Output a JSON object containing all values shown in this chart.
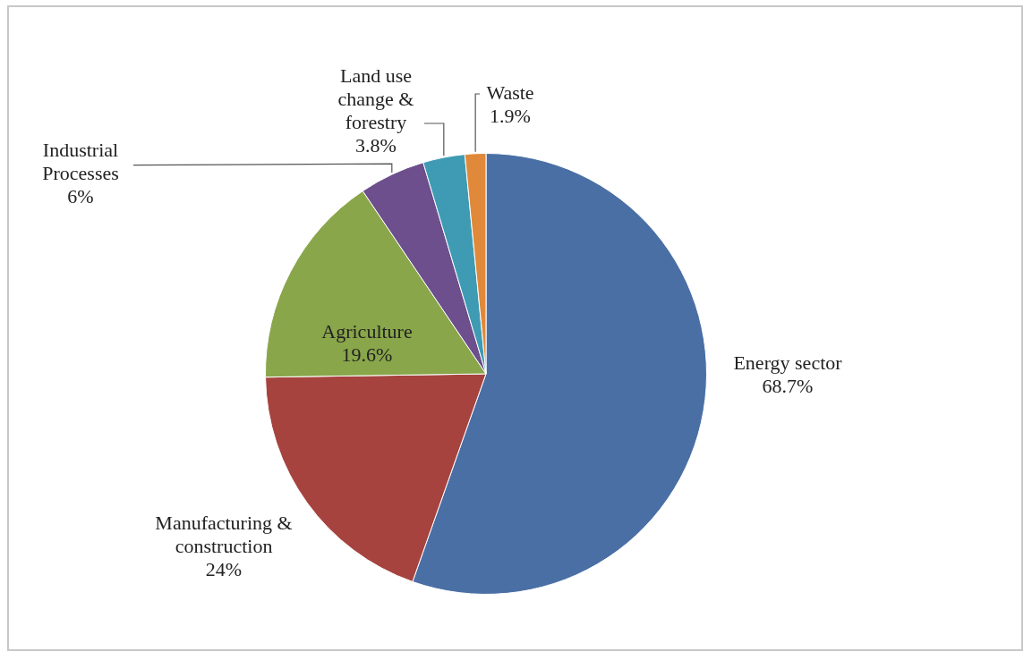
{
  "chart_data": {
    "type": "pie",
    "categories": [
      "Energy sector",
      "Manufacturing & construction",
      "Agriculture",
      "Industrial Processes",
      "Land use change & forestry",
      "Waste"
    ],
    "values": [
      68.7,
      24,
      19.6,
      6,
      3.8,
      1.9
    ],
    "value_labels": [
      "68.7%",
      "24%",
      "19.6%",
      "6%",
      "3.8%",
      "1.9%"
    ],
    "colors": [
      "#4a6fa5",
      "#a6433f",
      "#89a64a",
      "#6c4f8c",
      "#3f9bb3",
      "#e0893a"
    ],
    "legend": false
  }
}
